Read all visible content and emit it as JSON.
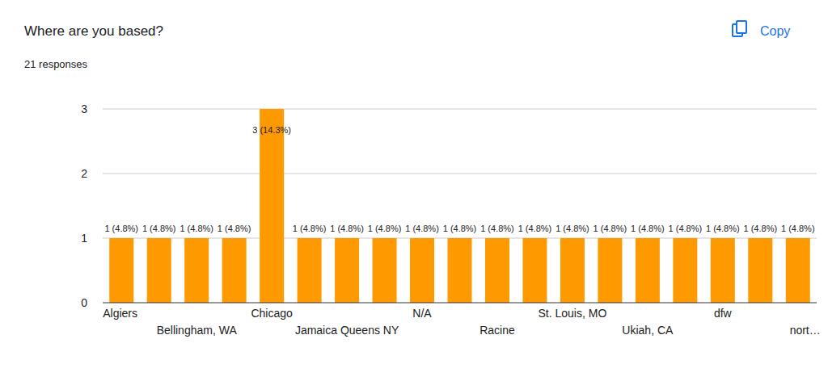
{
  "chart_data": {
    "type": "bar",
    "title": "Where are you based?",
    "subtitle": "21 responses",
    "annotations": [
      "Copy"
    ],
    "categories": [
      "Algiers",
      null,
      "Bellingham, WA",
      null,
      "Chicago",
      null,
      "Jamaica Queens NY",
      null,
      "N/A",
      null,
      "Racine",
      null,
      "St. Louis, MO",
      null,
      "Ukiah, CA",
      null,
      "dfw",
      null,
      "nort…"
    ],
    "values": [
      1,
      1,
      1,
      1,
      3,
      1,
      1,
      1,
      1,
      1,
      1,
      1,
      1,
      1,
      1,
      1,
      1,
      1,
      1
    ],
    "value_labels": [
      "1 (4.8%)",
      "1 (4.8%)",
      "1 (4.8%)",
      "1 (4.8%)",
      "3 (14.3%)",
      "1 (4.8%)",
      "1 (4.8%)",
      "1 (4.8%)",
      "1 (4.8%)",
      "1 (4.8%)",
      "1 (4.8%)",
      "1 (4.8%)",
      "1 (4.8%)",
      "1 (4.8%)",
      "1 (4.8%)",
      "1 (4.8%)",
      "1 (4.8%)",
      "1 (4.8%)",
      "1 (4.8%)"
    ],
    "color": "#ff9900",
    "data_labels": true,
    "grid": true,
    "ylim": [
      0,
      3
    ],
    "yticks": [
      0,
      1,
      2,
      3
    ]
  }
}
